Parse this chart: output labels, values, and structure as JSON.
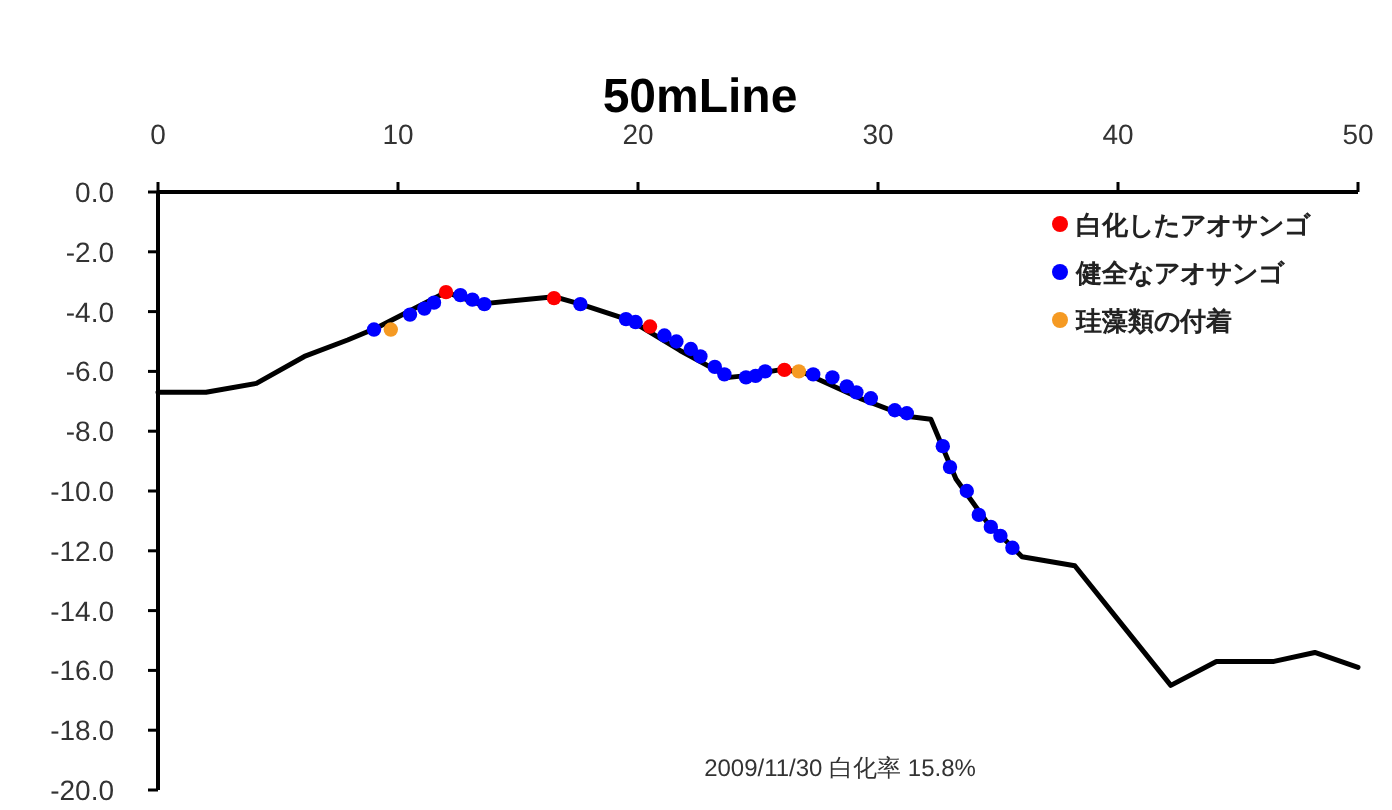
{
  "chart_data": {
    "type": "line",
    "title": "50mLine",
    "annotations": [
      "2009/11/30 白化率 15.8%"
    ],
    "xlim": [
      0,
      50
    ],
    "xticks": [
      0,
      10,
      20,
      30,
      40,
      50
    ],
    "ylim": [
      -20,
      0
    ],
    "yticks": [
      {
        "value": 0,
        "label": "0.0"
      },
      {
        "value": -2,
        "label": "-2.0"
      },
      {
        "value": -4,
        "label": "-4.0"
      },
      {
        "value": -6,
        "label": "-6.0"
      },
      {
        "value": -8,
        "label": "-8.0"
      },
      {
        "value": -10,
        "label": "-10.0"
      },
      {
        "value": -12,
        "label": "-12.0"
      },
      {
        "value": -14,
        "label": "-14.0"
      },
      {
        "value": -16,
        "label": "-16.0"
      },
      {
        "value": -18,
        "label": "-18.0"
      },
      {
        "value": -20,
        "label": "-20.0"
      }
    ],
    "grid": false,
    "legend": "top right",
    "line_style": "solid",
    "series": [
      {
        "color": "#000000",
        "marker": "none",
        "x": [
          0,
          2,
          4.1,
          6.1,
          7.9,
          9.1,
          12,
          13.4,
          16.5,
          17.6,
          19.7,
          21.75,
          23.8,
          24.4,
          25.9,
          26.8,
          29.25,
          31.2,
          32.2,
          33.25,
          34.5,
          36,
          38.2,
          40,
          42.2,
          44.1,
          46.5,
          48.2,
          50
        ],
        "values": [
          -6.7,
          -6.7,
          -6.4,
          -5.5,
          -4.95,
          -4.55,
          -3.35,
          -3.75,
          -3.5,
          -3.75,
          -4.3,
          -5.3,
          -6.2,
          -6.15,
          -5.95,
          -6.0,
          -6.9,
          -7.5,
          -7.6,
          -9.6,
          -11,
          -12.2,
          -12.5,
          -14.3,
          -16.5,
          -15.7,
          -15.7,
          -15.4,
          -15.9
        ]
      },
      {
        "type": "scatter",
        "name": "白化したアオサンゴ",
        "color": "#ff0000",
        "marker": "circle",
        "x": [
          12.0,
          16.5,
          20.5,
          26.1
        ],
        "values": [
          -3.35,
          -3.55,
          -4.5,
          -5.95
        ]
      },
      {
        "type": "scatter",
        "name": "健全なアオサンゴ",
        "color": "#0000ff",
        "marker": "circle",
        "x": [
          9.0,
          10.5,
          11.1,
          11.5,
          12.6,
          13.1,
          13.6,
          17.6,
          19.5,
          19.9,
          21.1,
          21.6,
          22.2,
          22.6,
          23.2,
          23.6,
          24.5,
          24.9,
          25.3,
          27.3,
          28.1,
          28.7,
          29.1,
          29.7,
          30.7,
          31.2,
          32.7,
          33.0,
          33.7,
          34.2,
          34.7,
          35.1,
          35.6
        ],
        "values": [
          -4.6,
          -4.1,
          -3.9,
          -3.7,
          -3.45,
          -3.6,
          -3.75,
          -3.75,
          -4.25,
          -4.35,
          -4.8,
          -5.0,
          -5.25,
          -5.5,
          -5.85,
          -6.1,
          -6.2,
          -6.15,
          -6.0,
          -6.1,
          -6.2,
          -6.5,
          -6.7,
          -6.9,
          -7.3,
          -7.4,
          -8.5,
          -9.2,
          -10.0,
          -10.8,
          -11.2,
          -11.5,
          -11.9
        ]
      },
      {
        "type": "scatter",
        "name": "珪藻類の付着",
        "color": "#f59a23",
        "marker": "circle",
        "x": [
          9.7,
          26.7
        ],
        "values": [
          -4.6,
          -6.0
        ]
      }
    ]
  }
}
